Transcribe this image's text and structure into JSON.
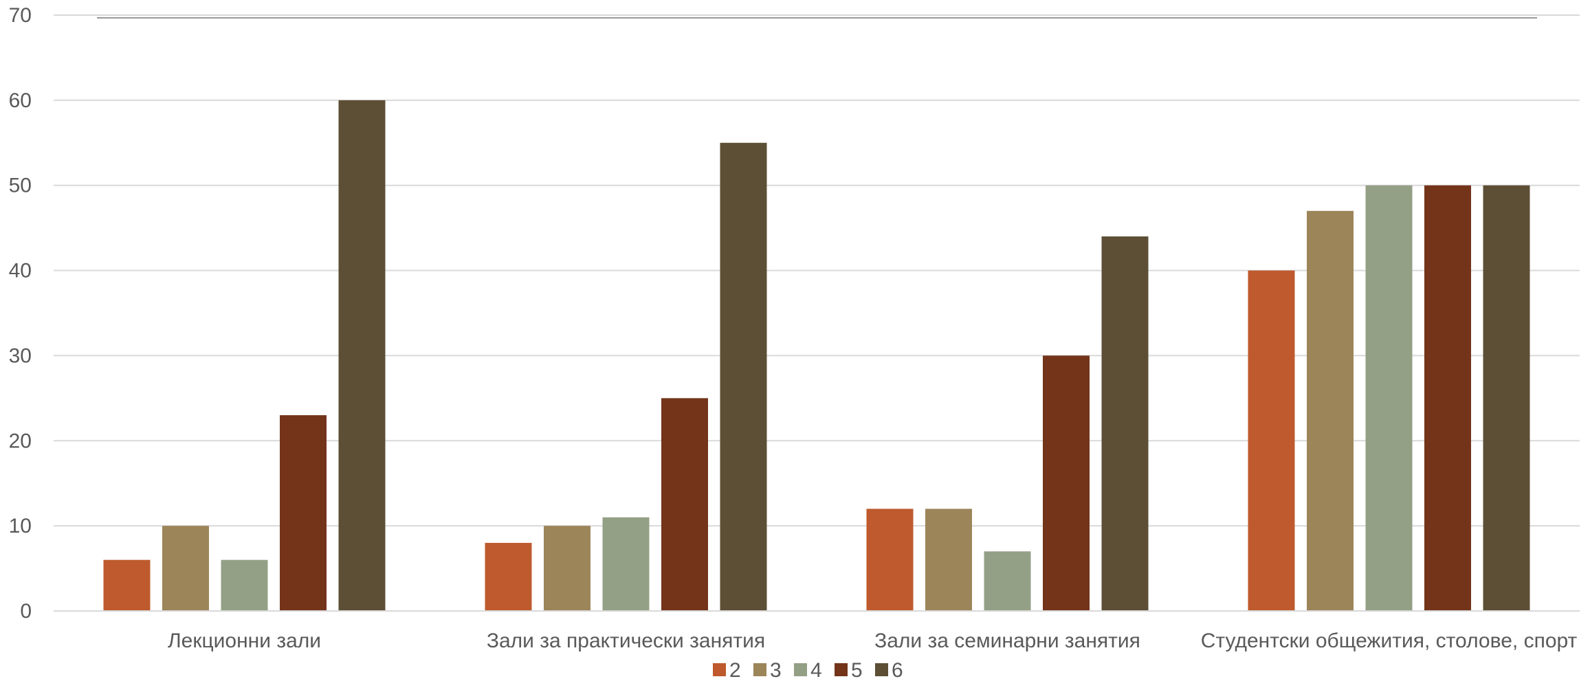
{
  "chart_data": {
    "type": "bar",
    "title": "",
    "xlabel": "",
    "ylabel": "",
    "ylim": [
      0,
      70
    ],
    "yticks": [
      0,
      10,
      20,
      30,
      40,
      50,
      60,
      70
    ],
    "grid": true,
    "legend_position": "bottom",
    "categories": [
      "Лекционни зали",
      "Зали за практически занятия",
      "Зали за семинарни занятия",
      "Студентски общежития, столове, спорт"
    ],
    "series": [
      {
        "name": "2",
        "color": "#BE5A2D",
        "values": [
          6,
          8,
          12,
          40
        ]
      },
      {
        "name": "3",
        "color": "#9C8559",
        "values": [
          10,
          10,
          12,
          47
        ]
      },
      {
        "name": "4",
        "color": "#94A086",
        "values": [
          6,
          11,
          7,
          50
        ]
      },
      {
        "name": "5",
        "color": "#73341A",
        "values": [
          23,
          25,
          30,
          50
        ]
      },
      {
        "name": "6",
        "color": "#5C4F35",
        "values": [
          60,
          55,
          44,
          50
        ]
      }
    ]
  }
}
